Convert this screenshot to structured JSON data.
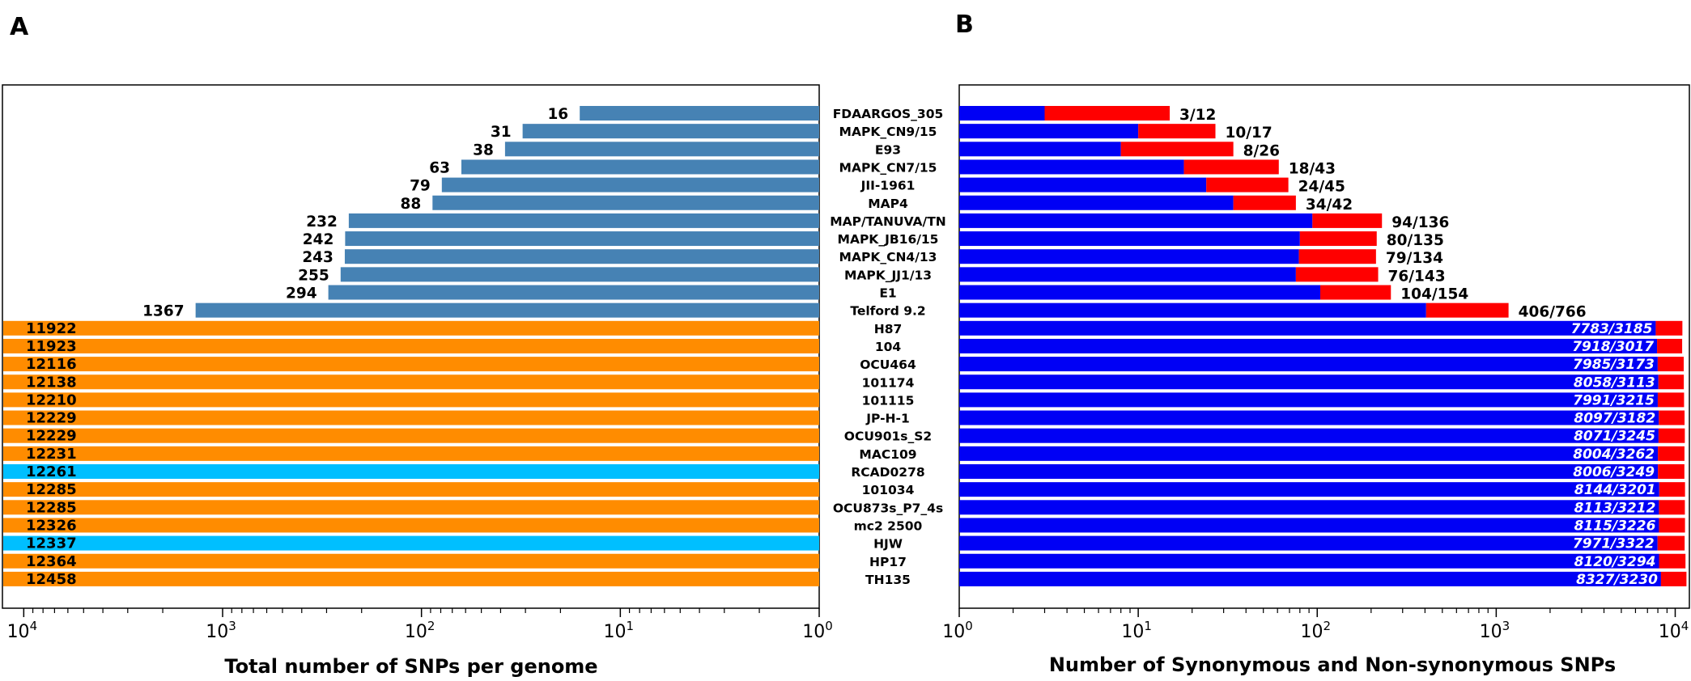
{
  "panel_letters": {
    "left": "A",
    "right": "B"
  },
  "colors": {
    "steelblue": "#4682b4",
    "orange": "#ff8c00",
    "deepskyblue": "#00bfff",
    "blue": "#0000f5",
    "red": "#ff0000"
  },
  "chart_data": [
    {
      "type": "bar",
      "orientation": "horizontal",
      "panel": "A",
      "title": "",
      "xlabel": "Total number of SNPs per genome",
      "ylabel": "",
      "xscale": "log",
      "xlim": [
        12800,
        1
      ],
      "x_direction": "reversed",
      "xticks": [
        {
          "value": 10000,
          "base": "10",
          "exp": "4"
        },
        {
          "value": 1000,
          "base": "10",
          "exp": "3"
        },
        {
          "value": 100,
          "base": "10",
          "exp": "2"
        },
        {
          "value": 10,
          "base": "10",
          "exp": "1"
        },
        {
          "value": 1,
          "base": "10",
          "exp": "0"
        }
      ],
      "categories": [
        "FDAARGOS_305",
        "MAPK_CN9/15",
        "E93",
        "MAPK_CN7/15",
        "JII-1961",
        "MAP4",
        "MAP/TANUVA/TN",
        "MAPK_JB16/15",
        "MAPK_CN4/13",
        "MAPK_JJ1/13",
        "E1",
        "Telford 9.2",
        "H87",
        "104",
        "OCU464",
        "101174",
        "101115",
        "JP-H-1",
        "OCU901s_S2",
        "MAC109",
        "RCAD0278",
        "101034",
        "OCU873s_P7_4s",
        "mc2 2500",
        "HJW",
        "HP17",
        "TH135"
      ],
      "values": [
        16,
        31,
        38,
        63,
        79,
        88,
        232,
        242,
        243,
        255,
        294,
        1367,
        11922,
        11923,
        12116,
        12138,
        12210,
        12229,
        12229,
        12231,
        12261,
        12285,
        12285,
        12326,
        12337,
        12364,
        12458
      ],
      "labels": [
        "16",
        "31",
        "38",
        "63",
        "79",
        "88",
        "232",
        "242",
        "243",
        "255",
        "294",
        "1367",
        "11922",
        "11923",
        "12116",
        "12138",
        "12210",
        "12229",
        "12229",
        "12231",
        "12261",
        "12285",
        "12285",
        "12326",
        "12337",
        "12364",
        "12458"
      ],
      "bar_colors": [
        "steelblue",
        "steelblue",
        "steelblue",
        "steelblue",
        "steelblue",
        "steelblue",
        "steelblue",
        "steelblue",
        "steelblue",
        "steelblue",
        "steelblue",
        "steelblue",
        "orange",
        "orange",
        "orange",
        "orange",
        "orange",
        "orange",
        "orange",
        "orange",
        "deepskyblue",
        "orange",
        "orange",
        "orange",
        "deepskyblue",
        "orange",
        "orange"
      ]
    },
    {
      "type": "bar",
      "orientation": "horizontal",
      "stacked": true,
      "panel": "B",
      "title": "",
      "xlabel": "Number of Synonymous and Non-synonymous SNPs",
      "ylabel": "",
      "xscale": "log",
      "xlim": [
        1,
        12000
      ],
      "xticks": [
        {
          "value": 1,
          "base": "10",
          "exp": "0"
        },
        {
          "value": 10,
          "base": "10",
          "exp": "1"
        },
        {
          "value": 100,
          "base": "10",
          "exp": "2"
        },
        {
          "value": 1000,
          "base": "10",
          "exp": "3"
        },
        {
          "value": 10000,
          "base": "10",
          "exp": "4"
        }
      ],
      "categories": [
        "FDAARGOS_305",
        "MAPK_CN9/15",
        "E93",
        "MAPK_CN7/15",
        "JII-1961",
        "MAP4",
        "MAP/TANUVA/TN",
        "MAPK_JB16/15",
        "MAPK_CN4/13",
        "MAPK_JJ1/13",
        "E1",
        "Telford 9.2",
        "H87",
        "104",
        "OCU464",
        "101174",
        "101115",
        "JP-H-1",
        "OCU901s_S2",
        "MAC109",
        "RCAD0278",
        "101034",
        "OCU873s_P7_4s",
        "mc2 2500",
        "HJW",
        "HP17",
        "TH135"
      ],
      "series": [
        {
          "name": "Synonymous",
          "color": "blue",
          "values": [
            3,
            10,
            8,
            18,
            24,
            34,
            94,
            80,
            79,
            76,
            104,
            406,
            7783,
            7918,
            7985,
            8058,
            7991,
            8097,
            8071,
            8004,
            8006,
            8144,
            8113,
            8115,
            7971,
            8120,
            8327
          ]
        },
        {
          "name": "Non-synonymous",
          "color": "red",
          "values": [
            12,
            17,
            26,
            43,
            45,
            42,
            136,
            135,
            134,
            143,
            154,
            766,
            3185,
            3017,
            3173,
            3113,
            3215,
            3182,
            3245,
            3262,
            3249,
            3201,
            3212,
            3226,
            3322,
            3294,
            3230
          ]
        }
      ],
      "labels": [
        "3/12",
        "10/17",
        "8/26",
        "18/43",
        "24/45",
        "34/42",
        "94/136",
        "80/135",
        "79/134",
        "76/143",
        "104/154",
        "406/766",
        "7783/3185",
        "7918/3017",
        "7985/3173",
        "8058/3113",
        "7991/3215",
        "8097/3182",
        "8071/3245",
        "8004/3262",
        "8006/3249",
        "8144/3201",
        "8113/3212",
        "8115/3226",
        "7971/3322",
        "8120/3294",
        "8327/3230"
      ]
    }
  ]
}
